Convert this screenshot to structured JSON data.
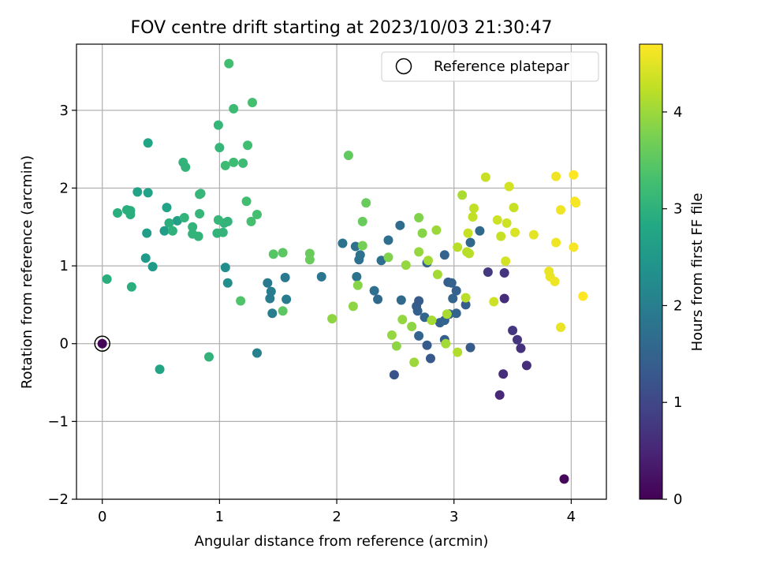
{
  "chart_data": {
    "type": "scatter",
    "title": "FOV centre drift starting at 2023/10/03 21:30:47",
    "xlabel": "Angular distance from reference (arcmin)",
    "ylabel": "Rotation from reference (arcmin)",
    "xlim": [
      -0.22,
      4.3
    ],
    "ylim": [
      -2,
      3.85
    ],
    "xticks": [
      0,
      1,
      2,
      3,
      4
    ],
    "yticks": [
      -2,
      -1,
      0,
      1,
      2,
      3
    ],
    "xtick_labels": [
      "0",
      "1",
      "2",
      "3",
      "4"
    ],
    "ytick_labels": [
      "−2",
      "−1",
      "0",
      "1",
      "2",
      "3"
    ],
    "grid": true,
    "legend": {
      "position": "top-right",
      "entries": [
        "Reference platepar"
      ]
    },
    "colorbar": {
      "label": "Hours from first FF file",
      "colormap": "viridis",
      "range": [
        0,
        4.7
      ],
      "ticks": [
        0,
        1,
        2,
        3,
        4
      ],
      "tick_labels": [
        "0",
        "1",
        "2",
        "3",
        "4"
      ]
    },
    "reference_point": {
      "name": "Reference platepar",
      "x": 0,
      "y": 0
    },
    "points": [
      {
        "x": 0.0,
        "y": 0.0,
        "h": 0.05
      },
      {
        "x": 3.94,
        "y": -1.74,
        "h": 0.1
      },
      {
        "x": 3.39,
        "y": -0.66,
        "h": 0.55
      },
      {
        "x": 3.42,
        "y": -0.39,
        "h": 0.6
      },
      {
        "x": 3.62,
        "y": -0.28,
        "h": 0.62
      },
      {
        "x": 3.57,
        "y": -0.06,
        "h": 0.65
      },
      {
        "x": 3.54,
        "y": 0.05,
        "h": 0.7
      },
      {
        "x": 3.5,
        "y": 0.17,
        "h": 0.75
      },
      {
        "x": 3.43,
        "y": 0.58,
        "h": 0.6
      },
      {
        "x": 3.29,
        "y": 0.92,
        "h": 0.78
      },
      {
        "x": 3.43,
        "y": 0.91,
        "h": 0.7
      },
      {
        "x": 2.49,
        "y": -0.4,
        "h": 1.2
      },
      {
        "x": 2.8,
        "y": -0.19,
        "h": 1.3
      },
      {
        "x": 2.77,
        "y": -0.02,
        "h": 1.35
      },
      {
        "x": 2.92,
        "y": 0.05,
        "h": 1.4
      },
      {
        "x": 3.14,
        "y": -0.05,
        "h": 1.35
      },
      {
        "x": 2.7,
        "y": 0.1,
        "h": 1.5
      },
      {
        "x": 2.75,
        "y": 0.34,
        "h": 1.5
      },
      {
        "x": 2.69,
        "y": 0.42,
        "h": 1.45
      },
      {
        "x": 2.68,
        "y": 0.48,
        "h": 1.4
      },
      {
        "x": 2.7,
        "y": 0.55,
        "h": 1.35
      },
      {
        "x": 2.55,
        "y": 0.56,
        "h": 1.6
      },
      {
        "x": 2.35,
        "y": 0.57,
        "h": 1.6
      },
      {
        "x": 2.32,
        "y": 0.68,
        "h": 1.7
      },
      {
        "x": 2.88,
        "y": 0.27,
        "h": 1.45
      },
      {
        "x": 2.92,
        "y": 0.3,
        "h": 1.5
      },
      {
        "x": 2.96,
        "y": 0.38,
        "h": 1.55
      },
      {
        "x": 3.02,
        "y": 0.39,
        "h": 1.5
      },
      {
        "x": 2.99,
        "y": 0.58,
        "h": 1.5
      },
      {
        "x": 3.02,
        "y": 0.68,
        "h": 1.45
      },
      {
        "x": 2.95,
        "y": 0.79,
        "h": 1.4
      },
      {
        "x": 2.98,
        "y": 0.78,
        "h": 1.45
      },
      {
        "x": 3.1,
        "y": 0.5,
        "h": 1.4
      },
      {
        "x": 2.77,
        "y": 1.04,
        "h": 1.5
      },
      {
        "x": 2.92,
        "y": 1.14,
        "h": 1.5
      },
      {
        "x": 2.38,
        "y": 1.07,
        "h": 1.7
      },
      {
        "x": 2.2,
        "y": 1.14,
        "h": 1.75
      },
      {
        "x": 2.19,
        "y": 1.08,
        "h": 1.75
      },
      {
        "x": 2.17,
        "y": 0.86,
        "h": 1.8
      },
      {
        "x": 2.16,
        "y": 1.25,
        "h": 1.75
      },
      {
        "x": 2.05,
        "y": 1.29,
        "h": 1.8
      },
      {
        "x": 2.44,
        "y": 1.33,
        "h": 1.7
      },
      {
        "x": 2.54,
        "y": 1.52,
        "h": 1.65
      },
      {
        "x": 3.14,
        "y": 1.3,
        "h": 1.6
      },
      {
        "x": 3.22,
        "y": 1.45,
        "h": 1.6
      },
      {
        "x": 1.87,
        "y": 0.86,
        "h": 1.85
      },
      {
        "x": 1.56,
        "y": 0.85,
        "h": 1.9
      },
      {
        "x": 1.57,
        "y": 0.57,
        "h": 1.95
      },
      {
        "x": 1.41,
        "y": 0.78,
        "h": 1.9
      },
      {
        "x": 1.44,
        "y": 0.67,
        "h": 1.95
      },
      {
        "x": 1.43,
        "y": 0.58,
        "h": 1.95
      },
      {
        "x": 1.45,
        "y": 0.39,
        "h": 2.0
      },
      {
        "x": 1.32,
        "y": -0.12,
        "h": 2.05
      },
      {
        "x": 1.07,
        "y": 0.78,
        "h": 2.3
      },
      {
        "x": 1.05,
        "y": 0.98,
        "h": 2.3
      },
      {
        "x": 0.37,
        "y": 1.1,
        "h": 2.55
      },
      {
        "x": 0.43,
        "y": 0.99,
        "h": 2.55
      },
      {
        "x": 0.38,
        "y": 1.42,
        "h": 2.6
      },
      {
        "x": 0.53,
        "y": 1.45,
        "h": 2.6
      },
      {
        "x": 0.55,
        "y": 1.75,
        "h": 2.7
      },
      {
        "x": 0.64,
        "y": 1.58,
        "h": 2.65
      },
      {
        "x": 0.39,
        "y": 1.94,
        "h": 2.7
      },
      {
        "x": 0.3,
        "y": 1.95,
        "h": 2.7
      },
      {
        "x": 0.39,
        "y": 2.58,
        "h": 2.75
      },
      {
        "x": 0.49,
        "y": -0.33,
        "h": 2.75
      },
      {
        "x": 0.25,
        "y": 0.73,
        "h": 2.95
      },
      {
        "x": 0.04,
        "y": 0.83,
        "h": 2.95
      },
      {
        "x": 0.13,
        "y": 1.68,
        "h": 2.95
      },
      {
        "x": 0.21,
        "y": 1.72,
        "h": 2.95
      },
      {
        "x": 0.24,
        "y": 1.71,
        "h": 2.95
      },
      {
        "x": 0.24,
        "y": 1.66,
        "h": 2.95
      },
      {
        "x": 0.57,
        "y": 1.55,
        "h": 2.95
      },
      {
        "x": 0.6,
        "y": 1.45,
        "h": 3.0
      },
      {
        "x": 0.7,
        "y": 1.62,
        "h": 3.05
      },
      {
        "x": 0.77,
        "y": 1.5,
        "h": 3.05
      },
      {
        "x": 0.77,
        "y": 1.41,
        "h": 3.05
      },
      {
        "x": 0.82,
        "y": 1.38,
        "h": 3.05
      },
      {
        "x": 0.83,
        "y": 1.92,
        "h": 3.1
      },
      {
        "x": 0.84,
        "y": 1.93,
        "h": 3.1
      },
      {
        "x": 0.69,
        "y": 2.33,
        "h": 3.05
      },
      {
        "x": 0.71,
        "y": 2.27,
        "h": 3.05
      },
      {
        "x": 0.91,
        "y": -0.17,
        "h": 3.05
      },
      {
        "x": 0.98,
        "y": 1.42,
        "h": 3.05
      },
      {
        "x": 1.03,
        "y": 1.43,
        "h": 3.05
      },
      {
        "x": 1.04,
        "y": 1.55,
        "h": 3.05
      },
      {
        "x": 1.07,
        "y": 1.57,
        "h": 3.05
      },
      {
        "x": 0.99,
        "y": 1.59,
        "h": 3.1
      },
      {
        "x": 0.83,
        "y": 1.67,
        "h": 3.1
      },
      {
        "x": 1.0,
        "y": 2.52,
        "h": 3.1
      },
      {
        "x": 0.99,
        "y": 2.81,
        "h": 3.1
      },
      {
        "x": 1.05,
        "y": 2.29,
        "h": 3.2
      },
      {
        "x": 1.12,
        "y": 2.33,
        "h": 3.2
      },
      {
        "x": 1.2,
        "y": 2.32,
        "h": 3.2
      },
      {
        "x": 1.12,
        "y": 3.02,
        "h": 3.2
      },
      {
        "x": 1.08,
        "y": 3.6,
        "h": 3.25
      },
      {
        "x": 1.24,
        "y": 2.55,
        "h": 3.25
      },
      {
        "x": 1.28,
        "y": 3.1,
        "h": 3.3
      },
      {
        "x": 1.23,
        "y": 1.83,
        "h": 3.25
      },
      {
        "x": 1.27,
        "y": 1.57,
        "h": 3.3
      },
      {
        "x": 1.32,
        "y": 1.66,
        "h": 3.3
      },
      {
        "x": 1.18,
        "y": 0.55,
        "h": 3.4
      },
      {
        "x": 1.46,
        "y": 1.15,
        "h": 3.45
      },
      {
        "x": 1.54,
        "y": 1.17,
        "h": 3.5
      },
      {
        "x": 1.54,
        "y": 0.42,
        "h": 3.5
      },
      {
        "x": 1.77,
        "y": 1.08,
        "h": 3.6
      },
      {
        "x": 1.77,
        "y": 1.16,
        "h": 3.6
      },
      {
        "x": 2.1,
        "y": 2.42,
        "h": 3.55
      },
      {
        "x": 2.25,
        "y": 1.81,
        "h": 3.6
      },
      {
        "x": 2.22,
        "y": 1.57,
        "h": 3.6
      },
      {
        "x": 2.22,
        "y": 1.26,
        "h": 3.7
      },
      {
        "x": 2.44,
        "y": 1.11,
        "h": 3.8
      },
      {
        "x": 2.18,
        "y": 0.75,
        "h": 3.85
      },
      {
        "x": 2.14,
        "y": 0.48,
        "h": 3.9
      },
      {
        "x": 1.96,
        "y": 0.32,
        "h": 3.9
      },
      {
        "x": 2.47,
        "y": 0.11,
        "h": 3.95
      },
      {
        "x": 2.51,
        "y": -0.03,
        "h": 3.9
      },
      {
        "x": 2.56,
        "y": 0.31,
        "h": 3.95
      },
      {
        "x": 2.64,
        "y": 0.22,
        "h": 3.9
      },
      {
        "x": 2.66,
        "y": -0.24,
        "h": 4.0
      },
      {
        "x": 2.59,
        "y": 1.01,
        "h": 3.95
      },
      {
        "x": 2.7,
        "y": 1.18,
        "h": 3.95
      },
      {
        "x": 2.73,
        "y": 1.42,
        "h": 3.85
      },
      {
        "x": 2.7,
        "y": 1.62,
        "h": 3.8
      },
      {
        "x": 2.85,
        "y": 1.46,
        "h": 4.0
      },
      {
        "x": 2.78,
        "y": 1.07,
        "h": 4.05
      },
      {
        "x": 2.86,
        "y": 0.89,
        "h": 4.05
      },
      {
        "x": 2.81,
        "y": 0.3,
        "h": 4.05
      },
      {
        "x": 2.93,
        "y": 0.0,
        "h": 4.05
      },
      {
        "x": 2.94,
        "y": 0.38,
        "h": 4.1
      },
      {
        "x": 3.03,
        "y": -0.11,
        "h": 4.15
      },
      {
        "x": 3.03,
        "y": 1.24,
        "h": 4.2
      },
      {
        "x": 3.11,
        "y": 1.18,
        "h": 4.2
      },
      {
        "x": 3.13,
        "y": 1.16,
        "h": 4.2
      },
      {
        "x": 3.1,
        "y": 0.59,
        "h": 4.2
      },
      {
        "x": 3.07,
        "y": 1.91,
        "h": 4.1
      },
      {
        "x": 3.16,
        "y": 1.63,
        "h": 4.25
      },
      {
        "x": 3.17,
        "y": 1.74,
        "h": 4.25
      },
      {
        "x": 3.12,
        "y": 1.42,
        "h": 4.3
      },
      {
        "x": 3.27,
        "y": 2.14,
        "h": 4.3
      },
      {
        "x": 3.34,
        "y": 0.54,
        "h": 4.35
      },
      {
        "x": 3.37,
        "y": 1.59,
        "h": 4.35
      },
      {
        "x": 3.4,
        "y": 1.38,
        "h": 4.3
      },
      {
        "x": 3.44,
        "y": 1.06,
        "h": 4.4
      },
      {
        "x": 3.45,
        "y": 1.55,
        "h": 4.35
      },
      {
        "x": 3.47,
        "y": 2.02,
        "h": 4.4
      },
      {
        "x": 3.51,
        "y": 1.75,
        "h": 4.3
      },
      {
        "x": 3.52,
        "y": 1.43,
        "h": 4.45
      },
      {
        "x": 3.68,
        "y": 1.4,
        "h": 4.5
      },
      {
        "x": 3.81,
        "y": 0.93,
        "h": 4.55
      },
      {
        "x": 3.82,
        "y": 0.86,
        "h": 4.55
      },
      {
        "x": 3.86,
        "y": 0.8,
        "h": 4.6
      },
      {
        "x": 3.87,
        "y": 1.3,
        "h": 4.6
      },
      {
        "x": 3.87,
        "y": 2.15,
        "h": 4.6
      },
      {
        "x": 3.91,
        "y": 1.72,
        "h": 4.6
      },
      {
        "x": 3.91,
        "y": 0.21,
        "h": 4.55
      },
      {
        "x": 4.02,
        "y": 1.24,
        "h": 4.65
      },
      {
        "x": 4.03,
        "y": 1.83,
        "h": 4.65
      },
      {
        "x": 4.04,
        "y": 1.81,
        "h": 4.65
      },
      {
        "x": 4.02,
        "y": 2.17,
        "h": 4.7
      },
      {
        "x": 4.1,
        "y": 0.61,
        "h": 4.7
      }
    ]
  }
}
